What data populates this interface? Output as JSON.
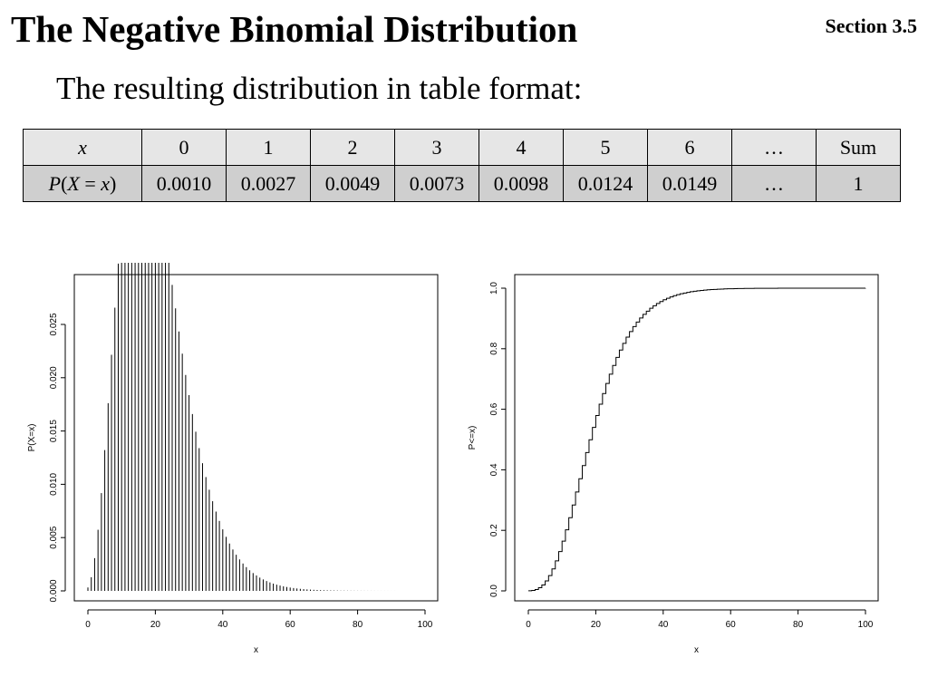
{
  "header": {
    "title": "The Negative Binomial Distribution",
    "section": "Section 3.5",
    "subtitle": "The resulting distribution in table format:"
  },
  "table": {
    "row_x": {
      "label": "x",
      "cells": [
        "0",
        "1",
        "2",
        "3",
        "4",
        "5",
        "6",
        "…",
        "Sum"
      ]
    },
    "row_p": {
      "label_parts": [
        "P",
        "(",
        "X",
        " = ",
        "x",
        ")"
      ],
      "cells": [
        "0.0010",
        "0.0027",
        "0.0049",
        "0.0073",
        "0.0098",
        "0.0124",
        "0.0149",
        "…",
        "1"
      ]
    }
  },
  "chart_data": [
    {
      "type": "bar",
      "style": "vertical-lines",
      "distribution": "negative binomial",
      "x_range": [
        0,
        100
      ],
      "values_shown": [
        0.001,
        0.0027,
        0.0049,
        0.0073,
        0.0098,
        0.0124,
        0.0149
      ],
      "peak": {
        "x": 18,
        "y": 0.0284
      },
      "xlabel": "x",
      "ylabel": "P(X=x)",
      "xlim": [
        0,
        100
      ],
      "ylim": [
        0,
        0.0284
      ],
      "xticks": [
        "0",
        "20",
        "40",
        "60",
        "80",
        "100"
      ],
      "yticks": [
        "0.000",
        "0.005",
        "0.010",
        "0.015",
        "0.020",
        "0.025"
      ],
      "grid": false
    },
    {
      "type": "line",
      "style": "step",
      "distribution": "negative binomial CDF",
      "x_range": [
        0,
        100
      ],
      "xlabel": "x",
      "ylabel": "P<=x)",
      "xlim": [
        0,
        100
      ],
      "ylim": [
        0,
        1
      ],
      "xticks": [
        "0",
        "20",
        "40",
        "60",
        "80",
        "100"
      ],
      "yticks": [
        "0.0",
        "0.2",
        "0.4",
        "0.6",
        "0.8",
        "1.0"
      ],
      "grid": false
    }
  ]
}
